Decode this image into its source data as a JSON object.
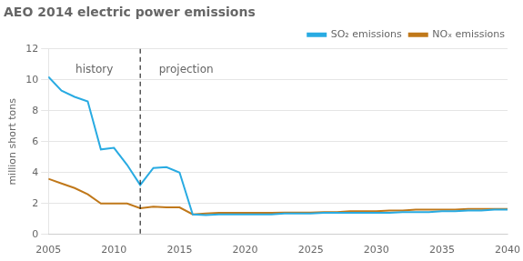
{
  "chart_data": {
    "type": "line",
    "title": "AEO 2014 electric power emissions",
    "ylabel": "million short tons",
    "x": [
      2005,
      2006,
      2007,
      2008,
      2009,
      2010,
      2011,
      2012,
      2013,
      2014,
      2015,
      2016,
      2017,
      2018,
      2019,
      2020,
      2021,
      2022,
      2023,
      2024,
      2025,
      2026,
      2027,
      2028,
      2029,
      2030,
      2031,
      2032,
      2033,
      2034,
      2035,
      2036,
      2037,
      2038,
      2039,
      2040
    ],
    "series": [
      {
        "name": "SO₂ emissions",
        "color": "#29ABE2",
        "values": [
          10.2,
          9.3,
          8.9,
          8.6,
          5.5,
          5.6,
          4.5,
          3.2,
          4.3,
          4.35,
          4.0,
          1.3,
          1.25,
          1.3,
          1.3,
          1.3,
          1.3,
          1.3,
          1.35,
          1.35,
          1.35,
          1.4,
          1.4,
          1.4,
          1.4,
          1.4,
          1.4,
          1.45,
          1.45,
          1.45,
          1.5,
          1.5,
          1.55,
          1.55,
          1.6,
          1.6
        ]
      },
      {
        "name": "NOₓ emissions",
        "color": "#C0781A",
        "values": [
          3.6,
          3.3,
          3.0,
          2.6,
          2.0,
          2.0,
          2.0,
          1.7,
          1.8,
          1.75,
          1.75,
          1.3,
          1.35,
          1.4,
          1.4,
          1.4,
          1.4,
          1.4,
          1.42,
          1.42,
          1.42,
          1.45,
          1.45,
          1.5,
          1.5,
          1.5,
          1.55,
          1.55,
          1.6,
          1.6,
          1.6,
          1.6,
          1.65,
          1.65,
          1.65,
          1.65
        ]
      }
    ],
    "xlim": [
      2005,
      2040
    ],
    "xticks": [
      2005,
      2010,
      2015,
      2020,
      2025,
      2030,
      2035,
      2040
    ],
    "ylim": [
      0,
      12
    ],
    "yticks": [
      0,
      2,
      4,
      6,
      8,
      10,
      12
    ],
    "grid": true,
    "legend": "upper right",
    "vlines": [
      {
        "x": 2012,
        "line_style": "dashed"
      }
    ],
    "annotations": [
      {
        "text": "history",
        "x": 2008.5,
        "y": 11.0
      },
      {
        "text": "projection",
        "x": 2015.5,
        "y": 11.0
      }
    ]
  }
}
